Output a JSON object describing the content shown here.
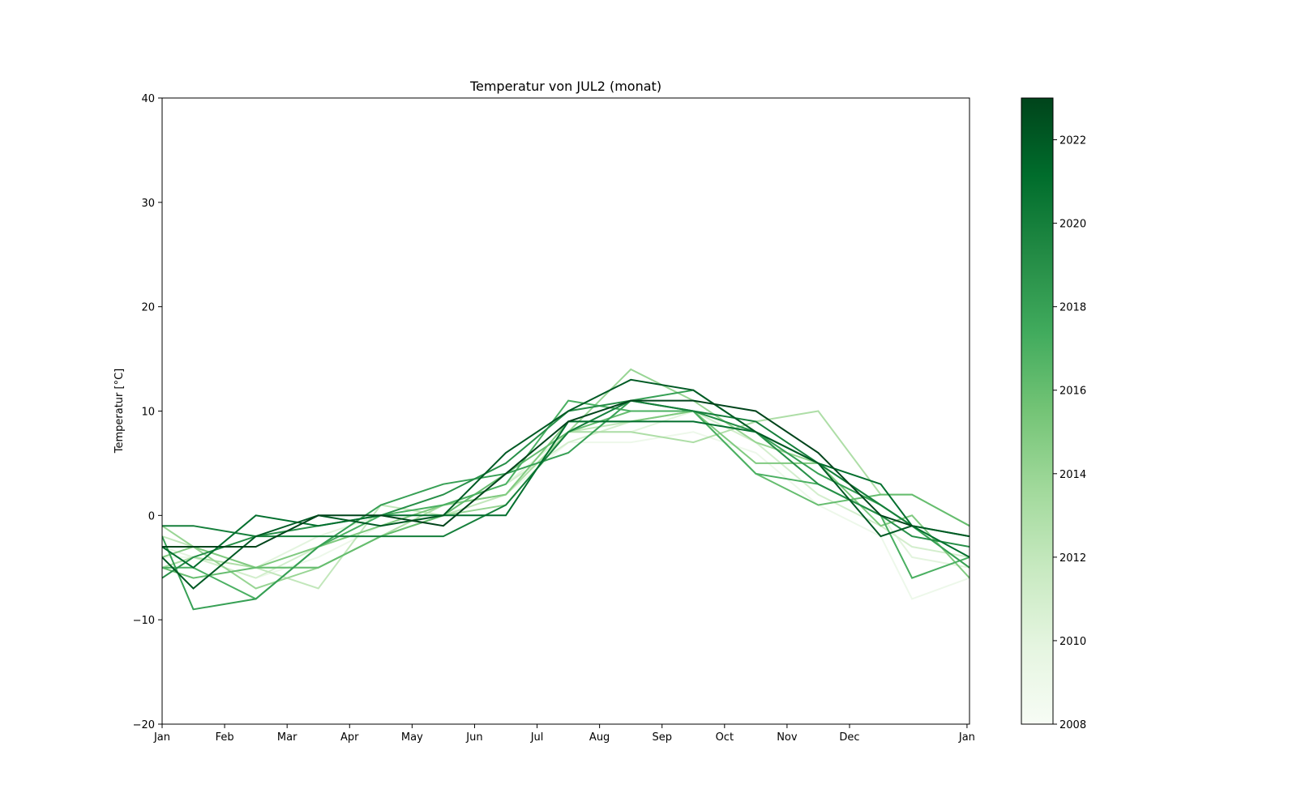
{
  "chart_data": {
    "type": "line",
    "title": "Temperatur von JUL2 (monat)",
    "xlabel": "",
    "ylabel": "Temperatur [°C]",
    "ylim": [
      -20,
      40
    ],
    "yticks": [
      -20,
      -10,
      0,
      10,
      20,
      30,
      40
    ],
    "ytick_labels": [
      "−20",
      "−10",
      "0",
      "10",
      "20",
      "30",
      "40"
    ],
    "xlim": [
      0,
      12.92
    ],
    "xtick_labels": [
      "Jan",
      "Feb",
      "Mar",
      "Apr",
      "May",
      "Jun",
      "Jul",
      "Aug",
      "Sep",
      "Oct",
      "Nov",
      "Dec",
      "Jan"
    ],
    "x": [
      0,
      0.5,
      1.5,
      2.5,
      3.5,
      4.5,
      5.5,
      6.5,
      7.5,
      8.5,
      9.5,
      10.5,
      11.5,
      12.0,
      12.92
    ],
    "grid": false,
    "colormap": "Greens",
    "colorbar": {
      "min": 2008,
      "max": 2023,
      "ticks": [
        2008,
        2010,
        2012,
        2014,
        2016,
        2018,
        2020,
        2022
      ],
      "tick_labels": [
        "2008",
        "2010",
        "2012",
        "2014",
        "2016",
        "2018",
        "2020",
        "2022"
      ],
      "colors": [
        "#f7fcf5",
        "#e5f5e0",
        "#c7e9c0",
        "#a1d99b",
        "#74c476",
        "#41ab5d",
        "#238b45",
        "#006d2c",
        "#00441b"
      ]
    },
    "series": [
      {
        "year": 2009,
        "values": [
          -4,
          -4,
          -6,
          -4,
          -1,
          0,
          2,
          7,
          7,
          8,
          6,
          1,
          -2,
          -8,
          -6
        ]
      },
      {
        "year": 2010,
        "values": [
          -3,
          -4,
          -5,
          -2,
          0,
          1,
          3,
          8,
          8,
          10,
          8,
          3,
          0,
          -4,
          -5
        ]
      },
      {
        "year": 2011,
        "values": [
          -5,
          -4,
          -6,
          -3,
          -1,
          1,
          3,
          7,
          9,
          10,
          7,
          2,
          -1,
          -3,
          -4
        ]
      },
      {
        "year": 2012,
        "values": [
          -2,
          -3,
          -5,
          -7,
          1,
          0,
          2,
          8,
          9,
          10,
          8,
          4,
          1,
          -1,
          -5
        ]
      },
      {
        "year": 2013,
        "values": [
          -5,
          -4,
          -5,
          -5,
          -2,
          1,
          2,
          8,
          8,
          7,
          9,
          10,
          2,
          2,
          -1
        ]
      },
      {
        "year": 2014,
        "values": [
          -1,
          -3,
          -7,
          -5,
          -2,
          0,
          1,
          8,
          14,
          11,
          7,
          5,
          1,
          -1,
          -5
        ]
      },
      {
        "year": 2015,
        "values": [
          -4,
          -3,
          -5,
          -3,
          -1,
          1,
          2,
          9,
          9,
          10,
          5,
          5,
          -1,
          0,
          -6
        ]
      },
      {
        "year": 2016,
        "values": [
          -5,
          -6,
          -5,
          -5,
          -2,
          0,
          4,
          8,
          10,
          10,
          4,
          1,
          2,
          2,
          -1
        ]
      },
      {
        "year": 2017,
        "values": [
          -5,
          -5,
          -8,
          -3,
          0,
          1,
          3,
          11,
          10,
          10,
          4,
          3,
          0,
          -6,
          -4
        ]
      },
      {
        "year": 2018,
        "values": [
          -2,
          -9,
          -8,
          -3,
          1,
          3,
          4,
          6,
          11,
          12,
          8,
          4,
          1,
          -1,
          -5
        ]
      },
      {
        "year": 2019,
        "values": [
          -6,
          -4,
          -2,
          -1,
          0,
          2,
          5,
          10,
          11,
          10,
          8,
          3,
          0,
          -2,
          -3
        ]
      },
      {
        "year": 2020,
        "values": [
          -1,
          -1,
          -2,
          -2,
          -2,
          -2,
          1,
          8,
          11,
          10,
          9,
          5,
          1,
          -1,
          -2
        ]
      },
      {
        "year": 2021,
        "values": [
          -3,
          -5,
          0,
          -1,
          0,
          0,
          0,
          9,
          9,
          9,
          8,
          5,
          3,
          -1,
          -4
        ]
      },
      {
        "year": 2022,
        "values": [
          -4,
          -7,
          -2,
          0,
          -1,
          0,
          6,
          10,
          13,
          12,
          8,
          5,
          -2,
          -1,
          -2
        ]
      },
      {
        "year": 2023,
        "values": [
          -3,
          -3,
          -3,
          0,
          0,
          -1,
          4,
          9,
          11,
          11,
          10,
          6,
          0,
          -1,
          null
        ]
      }
    ]
  }
}
